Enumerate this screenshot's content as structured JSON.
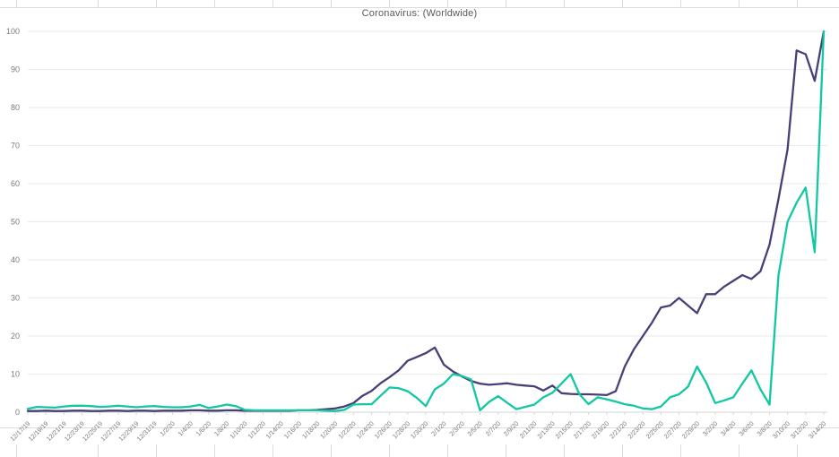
{
  "title": "Coronavirus: (Worldwide)",
  "chart_data": {
    "type": "line",
    "title": "Coronavirus: (Worldwide)",
    "xlabel": "",
    "ylabel": "",
    "ylim": [
      0,
      100
    ],
    "yticks": [
      0,
      10,
      20,
      30,
      40,
      50,
      60,
      70,
      80,
      90,
      100
    ],
    "grid": true,
    "legend_position": "none",
    "x_label_every": 2,
    "x": [
      "12/17/19",
      "12/18/19",
      "12/19/19",
      "12/20/19",
      "12/21/19",
      "12/22/19",
      "12/23/19",
      "12/24/19",
      "12/25/19",
      "12/26/19",
      "12/27/19",
      "12/28/19",
      "12/29/19",
      "12/30/19",
      "12/31/19",
      "1/1/20",
      "1/2/20",
      "1/3/20",
      "1/4/20",
      "1/5/20",
      "1/6/20",
      "1/7/20",
      "1/8/20",
      "1/9/20",
      "1/10/20",
      "1/11/20",
      "1/12/20",
      "1/13/20",
      "1/14/20",
      "1/15/20",
      "1/16/20",
      "1/17/20",
      "1/18/20",
      "1/19/20",
      "1/20/20",
      "1/21/20",
      "1/22/20",
      "1/23/20",
      "1/24/20",
      "1/25/20",
      "1/26/20",
      "1/27/20",
      "1/28/20",
      "1/29/20",
      "1/30/20",
      "1/31/20",
      "2/1/20",
      "2/2/20",
      "2/3/20",
      "2/4/20",
      "2/5/20",
      "2/6/20",
      "2/7/20",
      "2/8/20",
      "2/9/20",
      "2/10/20",
      "2/11/20",
      "2/12/20",
      "2/13/20",
      "2/14/20",
      "2/15/20",
      "2/16/20",
      "2/17/20",
      "2/18/20",
      "2/19/20",
      "2/20/20",
      "2/21/20",
      "2/22/20",
      "2/23/20",
      "2/24/20",
      "2/25/20",
      "2/26/20",
      "2/27/20",
      "2/28/20",
      "2/29/20",
      "3/1/20",
      "3/2/20",
      "3/3/20",
      "3/4/20",
      "3/5/20",
      "3/6/20",
      "3/7/20",
      "3/8/20",
      "3/9/20",
      "3/10/20",
      "3/11/20",
      "3/12/20",
      "3/13/20",
      "3/14/20"
    ],
    "series": [
      {
        "name": "series-purple",
        "color": "#483f77",
        "values": [
          0.3,
          0.3,
          0.4,
          0.3,
          0.3,
          0.4,
          0.4,
          0.3,
          0.3,
          0.4,
          0.4,
          0.3,
          0.4,
          0.4,
          0.3,
          0.4,
          0.4,
          0.4,
          0.5,
          0.5,
          0.4,
          0.4,
          0.5,
          0.5,
          0.4,
          0.4,
          0.4,
          0.4,
          0.4,
          0.4,
          0.5,
          0.5,
          0.6,
          0.8,
          1,
          1.5,
          2.4,
          4.3,
          5.6,
          7.6,
          9.2,
          11,
          13.5,
          14.5,
          15.5,
          17,
          12.5,
          10.7,
          9.4,
          8.2,
          7.5,
          7.2,
          7.4,
          7.6,
          7.2,
          7,
          6.8,
          5.7,
          7,
          5,
          4.8,
          4.7,
          4.7,
          4.6,
          4.5,
          5.5,
          12,
          16.5,
          20,
          23.5,
          27.5,
          28,
          30,
          28,
          26,
          31,
          31,
          33,
          34.5,
          36,
          35,
          37,
          44,
          56,
          69,
          95,
          94,
          87,
          100
        ]
      },
      {
        "name": "series-teal",
        "color": "#13c7a2",
        "values": [
          0.9,
          1.4,
          1.3,
          1.2,
          1.5,
          1.7,
          1.7,
          1.6,
          1.4,
          1.5,
          1.7,
          1.5,
          1.3,
          1.5,
          1.6,
          1.4,
          1.3,
          1.3,
          1.5,
          1.9,
          1.1,
          1.5,
          2,
          1.6,
          0.6,
          0.5,
          0.5,
          0.5,
          0.5,
          0.5,
          0.5,
          0.5,
          0.5,
          0.4,
          0.3,
          0.6,
          2,
          2.1,
          2.1,
          4.3,
          6.5,
          6.3,
          5.5,
          3.8,
          1.6,
          6,
          7.5,
          10,
          9.5,
          8.6,
          0.5,
          2.7,
          4.2,
          2.5,
          0.8,
          1.4,
          2,
          3.9,
          5.1,
          7.5,
          10,
          4.7,
          2.1,
          3.9,
          3.4,
          2.8,
          2.1,
          1.7,
          1,
          0.8,
          1.5,
          3.9,
          4.7,
          6.7,
          12,
          7.8,
          2.4,
          3.1,
          3.9,
          7.5,
          11,
          6,
          2,
          36,
          50,
          55,
          59,
          42,
          100
        ]
      }
    ],
    "axis_color": "#d6d6d6",
    "gridline_color": "#eaeaea",
    "tick_label_color": "#7a7a7a",
    "title_color": "#595959"
  }
}
